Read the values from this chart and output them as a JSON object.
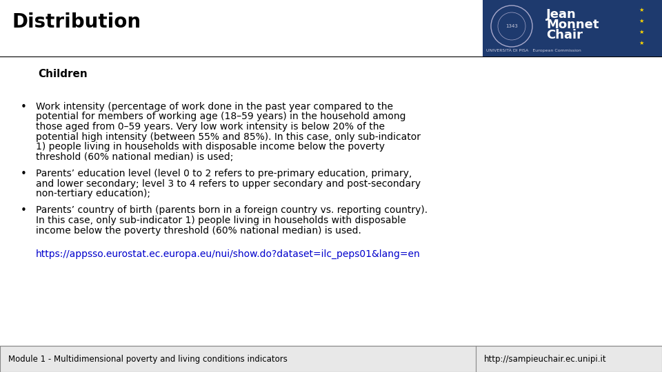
{
  "title": "Distribution",
  "subtitle": "Children",
  "bullet1_lines": [
    "Work intensity (percentage of work done in the past year compared to the",
    "potential for members of working age (18–59 years) in the household among",
    "those aged from 0–59 years. Very low work intensity is below 20% of the",
    "potential high intensity (between 55% and 85%). In this case, only sub-indicator",
    "1) people living in households with disposable income below the poverty",
    "threshold (60% national median) is used;"
  ],
  "bullet2_lines": [
    "Parents’ education level (level 0 to 2 refers to pre-primary education, primary,",
    "and lower secondary; level 3 to 4 refers to upper secondary and post-secondary",
    "non-tertiary education);"
  ],
  "bullet3_lines": [
    "Parents’ country of birth (parents born in a foreign country vs. reporting country).",
    "In this case, only sub-indicator 1) people living in households with disposable",
    "income below the poverty threshold (60% national median) is used."
  ],
  "link": "https://appsso.eurostat.ec.europa.eu/nui/show.do?dataset=ilc_peps01&lang=en",
  "footer_left": "Module 1 - Multidimensional poverty and living conditions indicators",
  "footer_right": "http://sampieuchair.ec.unipi.it",
  "bg_color": "#ffffff",
  "title_color": "#000000",
  "subtitle_color": "#000000",
  "body_color": "#000000",
  "link_color": "#0000CC",
  "footer_bg": "#e8e8e8",
  "logo_bg": "#1e3a6e",
  "logo_text_color": "#ffffff",
  "logo_small_color": "#cccccc",
  "title_fontsize": 20,
  "subtitle_fontsize": 11,
  "body_fontsize": 10,
  "footer_fontsize": 8.5,
  "logo_title_fontsize": 13
}
